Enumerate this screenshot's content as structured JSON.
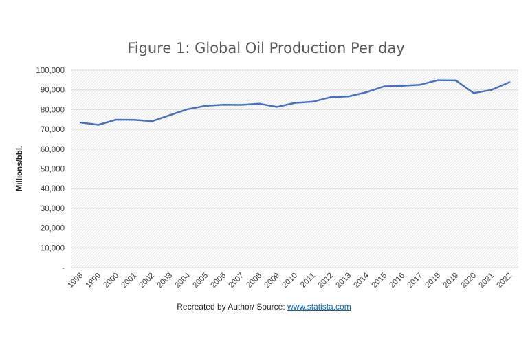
{
  "chart_data": {
    "type": "line",
    "title": "Figure 1: Global Oil Production Per day",
    "ylabel": "Millions/bbl.",
    "xlabel": "",
    "ylim": [
      0,
      100000
    ],
    "yticks": [
      "-",
      "10,000",
      "20,000",
      "30,000",
      "40,000",
      "50,000",
      "60,000",
      "70,000",
      "80,000",
      "90,000",
      "100,000"
    ],
    "grid": true,
    "categories": [
      "1998",
      "1999",
      "2000",
      "2001",
      "2002",
      "2003",
      "2004",
      "2005",
      "2006",
      "2007",
      "2008",
      "2009",
      "2010",
      "2011",
      "2012",
      "2013",
      "2014",
      "2015",
      "2016",
      "2017",
      "2018",
      "2019",
      "2020",
      "2021",
      "2022"
    ],
    "series": [
      {
        "color": "#4472c4",
        "values": [
          73500,
          72300,
          74900,
          74800,
          74100,
          77200,
          80200,
          81900,
          82500,
          82400,
          83000,
          81400,
          83400,
          84000,
          86300,
          86700,
          88800,
          91800,
          92100,
          92600,
          94900,
          94800,
          88400,
          90000,
          93900
        ]
      }
    ]
  },
  "footer": {
    "text": "Recreated by Author/ Source: ",
    "link": "www.statista.com"
  }
}
